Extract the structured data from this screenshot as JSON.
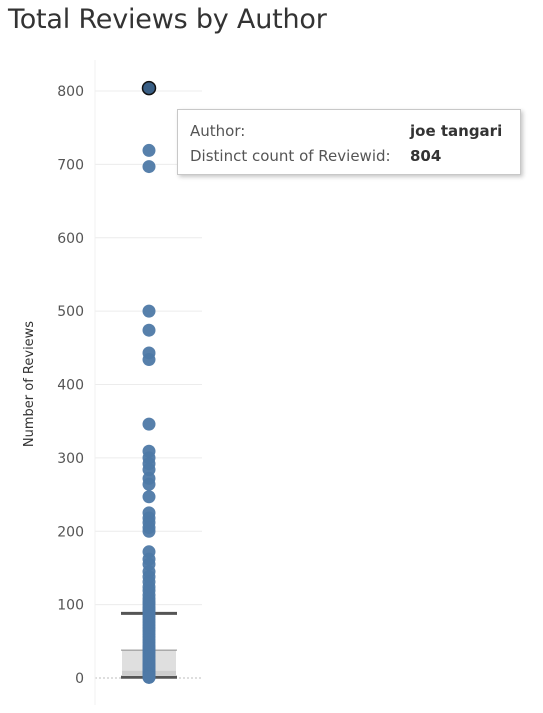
{
  "title": "Total Reviews by Author",
  "tooltip": {
    "author_label": "Author:",
    "author_value": "joe tangari",
    "count_label": "Distinct count of Reviewid:",
    "count_value": "804"
  },
  "colors": {
    "point": "#4e79a7",
    "highlight_point": "#3a5f85",
    "box_fill": "#d9d9d9",
    "whisker": "#555555",
    "gridline": "#ececec"
  },
  "chart_data": {
    "type": "scatter",
    "subtype": "box-and-whisker with jittered points (single column)",
    "title": "Total Reviews by Author",
    "ylabel": "Number of Reviews",
    "xlabel": "",
    "ylim": [
      0,
      820
    ],
    "yticks": [
      0,
      100,
      200,
      300,
      400,
      500,
      600,
      700,
      800
    ],
    "grid": true,
    "highlighted_point": {
      "author": "joe tangari",
      "value": 804
    },
    "box": {
      "lower_whisker": 1,
      "q1": 4,
      "median": 10,
      "q3": 38,
      "upper_whisker": 88
    },
    "values": [
      804,
      719,
      697,
      500,
      474,
      443,
      434,
      346,
      309,
      300,
      292,
      284,
      272,
      264,
      247,
      225,
      218,
      212,
      205,
      200,
      172,
      162,
      155,
      145,
      138,
      131,
      124,
      119,
      113,
      108,
      104,
      101,
      97,
      94,
      91,
      88,
      84,
      80,
      76,
      72,
      68,
      64,
      60,
      56,
      52,
      48,
      44,
      41,
      38,
      35,
      32,
      29,
      26,
      23,
      20,
      18,
      16,
      14,
      12,
      10,
      8,
      6,
      5,
      4,
      3,
      2,
      1,
      1,
      1
    ]
  }
}
